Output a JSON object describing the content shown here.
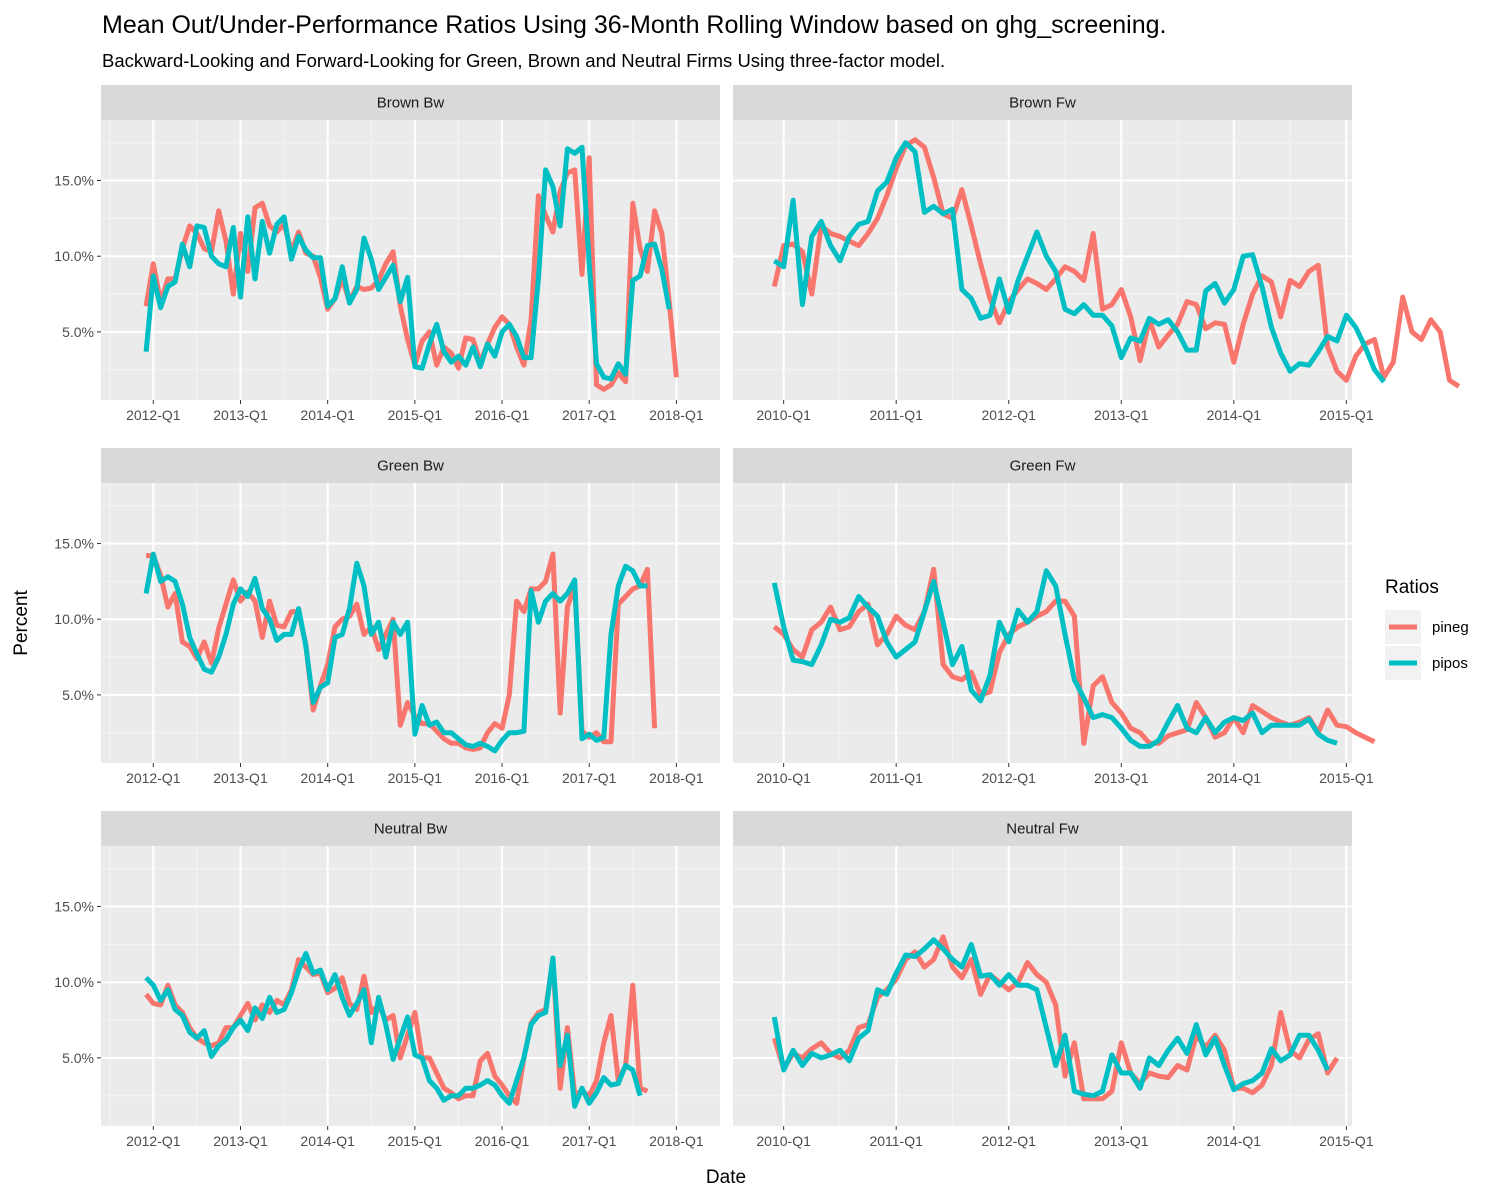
{
  "title": "Mean Out/Under-Performance Ratios Using 36-Month Rolling Window based on ghg_screening.",
  "subtitle": "Backward-Looking and Forward-Looking for Green, Brown and Neutral Firms Using three-factor model.",
  "chart_data": {
    "type": "line",
    "xlabel": "Date",
    "ylabel": "Percent",
    "ylim": [
      0.5,
      19.0
    ],
    "yticks": [
      5,
      10,
      15
    ],
    "ytick_labels": [
      "5.0%",
      "10.0%",
      "15.0%"
    ],
    "grid": true,
    "legend": {
      "title": "Ratios",
      "position": "right",
      "entries": [
        "pineg",
        "pipos"
      ]
    },
    "colors": {
      "pineg": "#F8766D",
      "pipos": "#00BFC4",
      "panel_bg": "#EBEBEB",
      "strip_bg": "#D9D9D9"
    },
    "column_axes": [
      {
        "xlim": [
          2011.4,
          2018.5
        ],
        "ticks": [
          2012,
          2013,
          2014,
          2015,
          2016,
          2017,
          2018
        ],
        "tick_labels": [
          "2012-Q1",
          "2013-Q1",
          "2014-Q1",
          "2015-Q1",
          "2016-Q1",
          "2017-Q1",
          "2018-Q1"
        ]
      },
      {
        "xlim": [
          2009.55,
          2015.05
        ],
        "ticks": [
          2010,
          2011,
          2012,
          2013,
          2014,
          2015
        ],
        "tick_labels": [
          "2010-Q1",
          "2011-Q1",
          "2012-Q1",
          "2013-Q1",
          "2014-Q1",
          "2015-Q1"
        ]
      }
    ],
    "panels": [
      {
        "label": "Brown Bw",
        "row": 0,
        "col": 0,
        "x0": 2011.917,
        "dx": 0.08333,
        "series": [
          {
            "name": "pineg",
            "values": [
              6.7,
              9.5,
              7.0,
              8.5,
              8.5,
              10.5,
              12.0,
              11.5,
              10.5,
              10.3,
              13.0,
              11.0,
              7.5,
              11.5,
              9.0,
              13.2,
              13.5,
              12.0,
              11.6,
              12.1,
              10.3,
              11.6,
              10.2,
              10.0,
              8.6,
              6.5,
              7.2,
              8.5,
              7.0,
              8.0,
              7.8,
              7.9,
              8.4,
              9.5,
              10.3,
              6.7,
              4.5,
              2.8,
              4.4,
              5.0,
              2.8,
              4.0,
              3.6,
              2.6,
              4.6,
              4.5,
              3.0,
              4.2,
              5.3,
              6.0,
              5.5,
              4.0,
              2.8,
              5.8,
              14.0,
              12.7,
              11.6,
              14.3,
              15.5,
              15.7,
              8.8,
              16.5,
              1.5,
              1.2,
              1.5,
              2.3,
              1.7,
              13.5,
              10.5,
              9.0,
              13.0,
              11.5,
              7.0,
              2.0
            ]
          },
          {
            "name": "pipos",
            "values": [
              3.7,
              8.7,
              6.6,
              8.0,
              8.3,
              10.8,
              9.3,
              12.0,
              11.9,
              10.0,
              9.5,
              9.3,
              11.9,
              7.3,
              12.6,
              8.5,
              12.3,
              10.2,
              12.1,
              12.6,
              9.8,
              11.3,
              10.4,
              9.9,
              9.9,
              6.7,
              7.2,
              9.3,
              6.9,
              7.8,
              11.2,
              9.8,
              7.8,
              8.6,
              9.4,
              7.0,
              8.6,
              2.7,
              2.6,
              4.2,
              5.5,
              3.7,
              3.0,
              3.4,
              2.8,
              4.0,
              2.7,
              4.2,
              3.4,
              5.0,
              5.5,
              4.7,
              3.3,
              3.3,
              8.5,
              15.7,
              14.6,
              12.0,
              17.1,
              16.8,
              17.2,
              9.5,
              2.9,
              2.0,
              1.9,
              2.9,
              2.2,
              8.4,
              8.7,
              10.7,
              10.8,
              9.1,
              6.5
            ]
          }
        ]
      },
      {
        "label": "Brown Fw",
        "row": 0,
        "col": 1,
        "x0": 2009.917,
        "dx": 0.08333,
        "series": [
          {
            "name": "pineg",
            "values": [
              8.0,
              10.7,
              10.8,
              10.3,
              7.5,
              12.0,
              11.5,
              11.3,
              11.0,
              10.7,
              11.5,
              12.5,
              14.0,
              15.8,
              17.3,
              17.7,
              17.2,
              15.2,
              12.8,
              12.5,
              14.4,
              12.0,
              9.5,
              7.2,
              5.6,
              7.0,
              7.8,
              8.5,
              8.2,
              7.8,
              8.5,
              9.3,
              9.0,
              8.4,
              11.5,
              6.5,
              6.8,
              7.8,
              6.0,
              3.1,
              5.8,
              4.0,
              4.8,
              5.5,
              7.0,
              6.8,
              5.2,
              5.6,
              5.5,
              3.0,
              5.5,
              7.5,
              8.7,
              8.3,
              6.0,
              8.4,
              8.0,
              9.0,
              9.4,
              4.0,
              2.4,
              1.8,
              3.4,
              4.2,
              4.5,
              2.0,
              3.0,
              7.3,
              5.0,
              4.5,
              5.8,
              5.0,
              1.8,
              1.4
            ]
          },
          {
            "name": "pipos",
            "values": [
              9.7,
              9.3,
              13.7,
              6.8,
              11.3,
              12.3,
              10.7,
              9.7,
              11.3,
              12.1,
              12.3,
              14.3,
              14.9,
              16.5,
              17.5,
              16.9,
              12.9,
              13.3,
              12.8,
              13.1,
              7.8,
              7.2,
              5.9,
              6.1,
              8.5,
              6.3,
              8.4,
              10.0,
              11.6,
              10.0,
              9.0,
              6.5,
              6.2,
              6.8,
              6.1,
              6.1,
              5.4,
              3.3,
              4.6,
              4.4,
              5.9,
              5.5,
              5.8,
              5.0,
              3.8,
              3.8,
              7.7,
              8.2,
              6.9,
              7.8,
              10.0,
              10.1,
              8.0,
              5.3,
              3.6,
              2.4,
              2.9,
              2.8,
              3.7,
              4.7,
              4.4,
              6.1,
              5.3,
              4.0,
              2.5,
              1.7
            ]
          }
        ]
      },
      {
        "label": "Green Bw",
        "row": 1,
        "col": 0,
        "x0": 2011.917,
        "dx": 0.08333,
        "series": [
          {
            "name": "pineg",
            "values": [
              14.2,
              14.2,
              12.9,
              10.8,
              11.7,
              8.5,
              8.2,
              7.4,
              8.5,
              7.1,
              9.4,
              11.0,
              12.6,
              11.2,
              11.8,
              11.2,
              8.8,
              11.2,
              9.6,
              9.5,
              10.5,
              10.5,
              8.3,
              4.0,
              5.6,
              7.0,
              9.5,
              10.0,
              10.2,
              11.0,
              9.0,
              9.5,
              8.0,
              9.0,
              10.0,
              3.0,
              4.5,
              3.6,
              3.1,
              3.1,
              2.6,
              2.1,
              1.8,
              1.8,
              1.5,
              1.4,
              1.5,
              2.5,
              3.1,
              2.8,
              5.0,
              11.2,
              10.5,
              12.0,
              12.0,
              12.5,
              14.3,
              3.8,
              10.8,
              12.2,
              2.6,
              2.2,
              2.5,
              1.9,
              1.9,
              11.0,
              11.5,
              12.0,
              12.2,
              13.3,
              2.8
            ]
          },
          {
            "name": "pipos",
            "values": [
              11.7,
              14.3,
              12.5,
              12.8,
              12.5,
              11.0,
              8.8,
              7.7,
              6.7,
              6.5,
              7.5,
              9.0,
              11.0,
              12.0,
              11.5,
              12.7,
              10.7,
              10.0,
              8.6,
              9.0,
              9.0,
              10.7,
              8.2,
              4.5,
              5.5,
              5.8,
              8.8,
              9.0,
              10.7,
              13.7,
              12.2,
              9.0,
              9.8,
              7.5,
              9.8,
              9.0,
              9.8,
              2.4,
              4.3,
              3.0,
              3.2,
              2.5,
              2.5,
              2.1,
              1.7,
              1.6,
              1.8,
              1.6,
              1.3,
              2.0,
              2.5,
              2.5,
              2.6,
              11.9,
              9.8,
              11.2,
              11.7,
              11.2,
              11.7,
              12.6,
              2.1,
              2.4,
              2.0,
              2.2,
              9.0,
              12.2,
              13.5,
              13.2,
              12.2,
              12.2
            ]
          }
        ]
      },
      {
        "label": "Green Fw",
        "row": 1,
        "col": 1,
        "x0": 2009.917,
        "dx": 0.08333,
        "series": [
          {
            "name": "pineg",
            "values": [
              9.5,
              9.0,
              8.0,
              7.5,
              9.3,
              9.8,
              10.8,
              9.3,
              9.5,
              10.5,
              11.0,
              8.3,
              9.0,
              10.2,
              9.6,
              9.3,
              10.5,
              13.3,
              7.0,
              6.2,
              6.0,
              6.5,
              5.0,
              5.2,
              7.8,
              9.0,
              9.5,
              9.8,
              10.2,
              10.5,
              11.2,
              11.2,
              10.2,
              1.8,
              5.6,
              6.2,
              4.5,
              3.8,
              2.8,
              2.5,
              1.8,
              1.8,
              2.3,
              2.5,
              2.7,
              4.5,
              3.5,
              2.2,
              2.5,
              3.5,
              2.5,
              4.3,
              3.9,
              3.5,
              3.2,
              3.0,
              3.2,
              3.5,
              2.5,
              4.0,
              3.0,
              2.9,
              2.5,
              2.2,
              1.9
            ]
          },
          {
            "name": "pipos",
            "values": [
              12.4,
              9.5,
              7.3,
              7.2,
              7.0,
              8.3,
              10.0,
              9.8,
              10.1,
              11.5,
              10.8,
              10.2,
              8.5,
              7.5,
              8.0,
              8.5,
              10.5,
              12.5,
              9.8,
              7.0,
              8.2,
              5.3,
              4.6,
              6.3,
              9.8,
              8.5,
              10.6,
              9.8,
              10.5,
              13.2,
              12.2,
              9.0,
              6.0,
              4.8,
              3.5,
              3.7,
              3.5,
              2.8,
              2.0,
              1.6,
              1.6,
              2.0,
              3.2,
              4.3,
              2.8,
              2.5,
              3.5,
              2.5,
              3.2,
              3.5,
              3.3,
              3.8,
              2.5,
              3.0,
              3.0,
              3.0,
              3.0,
              3.4,
              2.4,
              2.0,
              1.8
            ]
          }
        ]
      },
      {
        "label": "Neutral Bw",
        "row": 2,
        "col": 0,
        "x0": 2011.917,
        "dx": 0.08333,
        "series": [
          {
            "name": "pineg",
            "values": [
              9.2,
              8.6,
              8.5,
              9.8,
              8.5,
              8.0,
              7.0,
              6.3,
              6.0,
              5.8,
              6.0,
              7.0,
              7.0,
              7.8,
              8.6,
              7.5,
              8.5,
              8.0,
              8.8,
              8.5,
              9.5,
              11.5,
              11.0,
              10.5,
              10.6,
              9.3,
              9.6,
              10.3,
              8.6,
              8.2,
              10.4,
              8.0,
              8.5,
              7.5,
              7.8,
              5.0,
              6.5,
              8.0,
              5.0,
              5.0,
              4.0,
              3.0,
              2.7,
              2.3,
              2.5,
              2.5,
              4.8,
              5.3,
              3.8,
              3.2,
              2.5,
              2.0,
              5.0,
              7.3,
              8.0,
              8.2,
              11.5,
              3.0,
              7.0,
              2.6,
              2.8,
              2.5,
              3.5,
              6.0,
              7.8,
              3.5,
              4.5,
              9.8,
              3.0,
              2.8
            ]
          },
          {
            "name": "pipos",
            "values": [
              10.3,
              9.8,
              8.8,
              9.5,
              8.2,
              7.8,
              6.7,
              6.3,
              6.8,
              5.1,
              5.8,
              6.2,
              7.0,
              7.5,
              6.8,
              8.3,
              7.6,
              9.0,
              8.0,
              8.2,
              9.3,
              10.8,
              11.9,
              10.6,
              10.8,
              9.5,
              10.5,
              9.0,
              7.8,
              8.6,
              9.5,
              6.0,
              9.0,
              7.2,
              4.9,
              6.3,
              7.7,
              5.2,
              5.0,
              3.5,
              3.0,
              2.2,
              2.5,
              2.5,
              3.0,
              3.0,
              3.2,
              3.5,
              3.2,
              2.5,
              2.0,
              3.5,
              5.0,
              7.2,
              7.8,
              8.0,
              11.6,
              4.5,
              6.5,
              1.8,
              3.0,
              2.0,
              2.7,
              3.7,
              3.2,
              3.3,
              4.5,
              4.2,
              2.5
            ]
          }
        ]
      },
      {
        "label": "Neutral Fw",
        "row": 2,
        "col": 1,
        "x0": 2009.917,
        "dx": 0.08333,
        "series": [
          {
            "name": "pineg",
            "values": [
              6.3,
              4.3,
              5.3,
              5.0,
              5.6,
              6.0,
              5.3,
              5.0,
              5.5,
              7.0,
              7.2,
              9.0,
              9.5,
              10.2,
              11.5,
              12.0,
              11.0,
              11.5,
              13.0,
              11.0,
              10.3,
              11.5,
              9.2,
              10.5,
              10.0,
              9.5,
              10.0,
              11.3,
              10.5,
              10.0,
              8.5,
              3.8,
              6.0,
              2.3,
              2.3,
              2.3,
              2.8,
              6.0,
              4.0,
              3.3,
              4.0,
              3.8,
              3.7,
              4.5,
              4.2,
              6.5,
              5.7,
              6.5,
              5.5,
              3.0,
              3.0,
              2.7,
              3.2,
              4.5,
              8.0,
              5.5,
              5.0,
              6.2,
              6.6,
              4.0,
              5.0
            ]
          },
          {
            "name": "pipos",
            "values": [
              7.7,
              4.2,
              5.5,
              4.5,
              5.3,
              5.0,
              5.2,
              5.5,
              4.8,
              6.3,
              6.8,
              9.5,
              9.2,
              10.6,
              11.8,
              11.7,
              12.2,
              12.8,
              12.2,
              11.5,
              11.0,
              12.5,
              10.4,
              10.5,
              9.8,
              10.5,
              9.8,
              9.8,
              9.5,
              7.0,
              4.5,
              6.5,
              2.8,
              2.6,
              2.5,
              2.8,
              5.2,
              4.0,
              4.0,
              3.0,
              5.0,
              4.5,
              5.5,
              6.3,
              5.3,
              7.2,
              5.2,
              6.3,
              4.5,
              2.9,
              3.3,
              3.5,
              4.0,
              5.6,
              4.8,
              5.2,
              6.5,
              6.5,
              5.5,
              4.2
            ]
          }
        ]
      }
    ]
  }
}
